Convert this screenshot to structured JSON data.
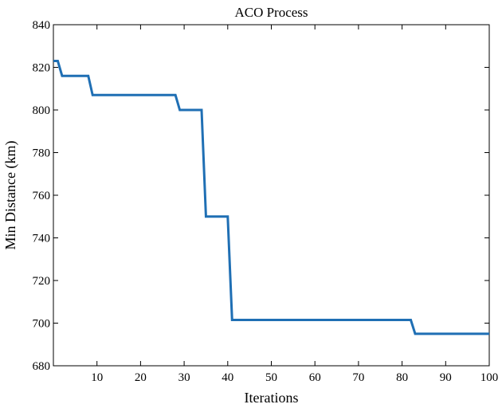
{
  "chart_data": {
    "type": "line",
    "title": "ACO Process",
    "xlabel": "Iterations",
    "ylabel": "Min Distance (km)",
    "xlim": [
      0,
      100
    ],
    "ylim": [
      680,
      840
    ],
    "xticks": [
      10,
      20,
      30,
      40,
      50,
      60,
      70,
      80,
      90,
      100
    ],
    "yticks": [
      680,
      700,
      720,
      740,
      760,
      780,
      800,
      820,
      840
    ],
    "grid": false,
    "line_color": "#1f6fb4",
    "series": [
      {
        "x": [
          0,
          1,
          2,
          8,
          9,
          28,
          29,
          34,
          35,
          40,
          41,
          82,
          83,
          100
        ],
        "y": [
          823,
          823,
          816,
          816,
          807,
          807,
          800,
          800,
          750,
          750,
          701.5,
          701.5,
          695,
          695
        ]
      }
    ]
  }
}
